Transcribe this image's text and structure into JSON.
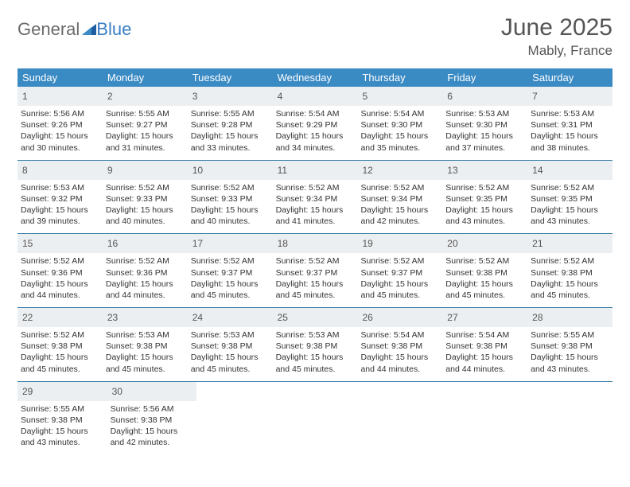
{
  "brand": {
    "part1": "General",
    "part2": "Blue"
  },
  "title": {
    "month": "June 2025",
    "location": "Mably, France"
  },
  "colors": {
    "header_bg": "#3a8ac4",
    "header_text": "#ffffff",
    "daynum_bg": "#eceff1",
    "week_border": "#3a7fa8",
    "body_text": "#333333",
    "title_text": "#555555",
    "brand_gray": "#6a6a6a",
    "brand_blue": "#3a7fc4"
  },
  "dow": [
    "Sunday",
    "Monday",
    "Tuesday",
    "Wednesday",
    "Thursday",
    "Friday",
    "Saturday"
  ],
  "weeks": [
    [
      {
        "n": "1",
        "sunrise": "Sunrise: 5:56 AM",
        "sunset": "Sunset: 9:26 PM",
        "dl1": "Daylight: 15 hours",
        "dl2": "and 30 minutes."
      },
      {
        "n": "2",
        "sunrise": "Sunrise: 5:55 AM",
        "sunset": "Sunset: 9:27 PM",
        "dl1": "Daylight: 15 hours",
        "dl2": "and 31 minutes."
      },
      {
        "n": "3",
        "sunrise": "Sunrise: 5:55 AM",
        "sunset": "Sunset: 9:28 PM",
        "dl1": "Daylight: 15 hours",
        "dl2": "and 33 minutes."
      },
      {
        "n": "4",
        "sunrise": "Sunrise: 5:54 AM",
        "sunset": "Sunset: 9:29 PM",
        "dl1": "Daylight: 15 hours",
        "dl2": "and 34 minutes."
      },
      {
        "n": "5",
        "sunrise": "Sunrise: 5:54 AM",
        "sunset": "Sunset: 9:30 PM",
        "dl1": "Daylight: 15 hours",
        "dl2": "and 35 minutes."
      },
      {
        "n": "6",
        "sunrise": "Sunrise: 5:53 AM",
        "sunset": "Sunset: 9:30 PM",
        "dl1": "Daylight: 15 hours",
        "dl2": "and 37 minutes."
      },
      {
        "n": "7",
        "sunrise": "Sunrise: 5:53 AM",
        "sunset": "Sunset: 9:31 PM",
        "dl1": "Daylight: 15 hours",
        "dl2": "and 38 minutes."
      }
    ],
    [
      {
        "n": "8",
        "sunrise": "Sunrise: 5:53 AM",
        "sunset": "Sunset: 9:32 PM",
        "dl1": "Daylight: 15 hours",
        "dl2": "and 39 minutes."
      },
      {
        "n": "9",
        "sunrise": "Sunrise: 5:52 AM",
        "sunset": "Sunset: 9:33 PM",
        "dl1": "Daylight: 15 hours",
        "dl2": "and 40 minutes."
      },
      {
        "n": "10",
        "sunrise": "Sunrise: 5:52 AM",
        "sunset": "Sunset: 9:33 PM",
        "dl1": "Daylight: 15 hours",
        "dl2": "and 40 minutes."
      },
      {
        "n": "11",
        "sunrise": "Sunrise: 5:52 AM",
        "sunset": "Sunset: 9:34 PM",
        "dl1": "Daylight: 15 hours",
        "dl2": "and 41 minutes."
      },
      {
        "n": "12",
        "sunrise": "Sunrise: 5:52 AM",
        "sunset": "Sunset: 9:34 PM",
        "dl1": "Daylight: 15 hours",
        "dl2": "and 42 minutes."
      },
      {
        "n": "13",
        "sunrise": "Sunrise: 5:52 AM",
        "sunset": "Sunset: 9:35 PM",
        "dl1": "Daylight: 15 hours",
        "dl2": "and 43 minutes."
      },
      {
        "n": "14",
        "sunrise": "Sunrise: 5:52 AM",
        "sunset": "Sunset: 9:35 PM",
        "dl1": "Daylight: 15 hours",
        "dl2": "and 43 minutes."
      }
    ],
    [
      {
        "n": "15",
        "sunrise": "Sunrise: 5:52 AM",
        "sunset": "Sunset: 9:36 PM",
        "dl1": "Daylight: 15 hours",
        "dl2": "and 44 minutes."
      },
      {
        "n": "16",
        "sunrise": "Sunrise: 5:52 AM",
        "sunset": "Sunset: 9:36 PM",
        "dl1": "Daylight: 15 hours",
        "dl2": "and 44 minutes."
      },
      {
        "n": "17",
        "sunrise": "Sunrise: 5:52 AM",
        "sunset": "Sunset: 9:37 PM",
        "dl1": "Daylight: 15 hours",
        "dl2": "and 45 minutes."
      },
      {
        "n": "18",
        "sunrise": "Sunrise: 5:52 AM",
        "sunset": "Sunset: 9:37 PM",
        "dl1": "Daylight: 15 hours",
        "dl2": "and 45 minutes."
      },
      {
        "n": "19",
        "sunrise": "Sunrise: 5:52 AM",
        "sunset": "Sunset: 9:37 PM",
        "dl1": "Daylight: 15 hours",
        "dl2": "and 45 minutes."
      },
      {
        "n": "20",
        "sunrise": "Sunrise: 5:52 AM",
        "sunset": "Sunset: 9:38 PM",
        "dl1": "Daylight: 15 hours",
        "dl2": "and 45 minutes."
      },
      {
        "n": "21",
        "sunrise": "Sunrise: 5:52 AM",
        "sunset": "Sunset: 9:38 PM",
        "dl1": "Daylight: 15 hours",
        "dl2": "and 45 minutes."
      }
    ],
    [
      {
        "n": "22",
        "sunrise": "Sunrise: 5:52 AM",
        "sunset": "Sunset: 9:38 PM",
        "dl1": "Daylight: 15 hours",
        "dl2": "and 45 minutes."
      },
      {
        "n": "23",
        "sunrise": "Sunrise: 5:53 AM",
        "sunset": "Sunset: 9:38 PM",
        "dl1": "Daylight: 15 hours",
        "dl2": "and 45 minutes."
      },
      {
        "n": "24",
        "sunrise": "Sunrise: 5:53 AM",
        "sunset": "Sunset: 9:38 PM",
        "dl1": "Daylight: 15 hours",
        "dl2": "and 45 minutes."
      },
      {
        "n": "25",
        "sunrise": "Sunrise: 5:53 AM",
        "sunset": "Sunset: 9:38 PM",
        "dl1": "Daylight: 15 hours",
        "dl2": "and 45 minutes."
      },
      {
        "n": "26",
        "sunrise": "Sunrise: 5:54 AM",
        "sunset": "Sunset: 9:38 PM",
        "dl1": "Daylight: 15 hours",
        "dl2": "and 44 minutes."
      },
      {
        "n": "27",
        "sunrise": "Sunrise: 5:54 AM",
        "sunset": "Sunset: 9:38 PM",
        "dl1": "Daylight: 15 hours",
        "dl2": "and 44 minutes."
      },
      {
        "n": "28",
        "sunrise": "Sunrise: 5:55 AM",
        "sunset": "Sunset: 9:38 PM",
        "dl1": "Daylight: 15 hours",
        "dl2": "and 43 minutes."
      }
    ],
    [
      {
        "n": "29",
        "sunrise": "Sunrise: 5:55 AM",
        "sunset": "Sunset: 9:38 PM",
        "dl1": "Daylight: 15 hours",
        "dl2": "and 43 minutes."
      },
      {
        "n": "30",
        "sunrise": "Sunrise: 5:56 AM",
        "sunset": "Sunset: 9:38 PM",
        "dl1": "Daylight: 15 hours",
        "dl2": "and 42 minutes."
      },
      null,
      null,
      null,
      null,
      null
    ]
  ]
}
